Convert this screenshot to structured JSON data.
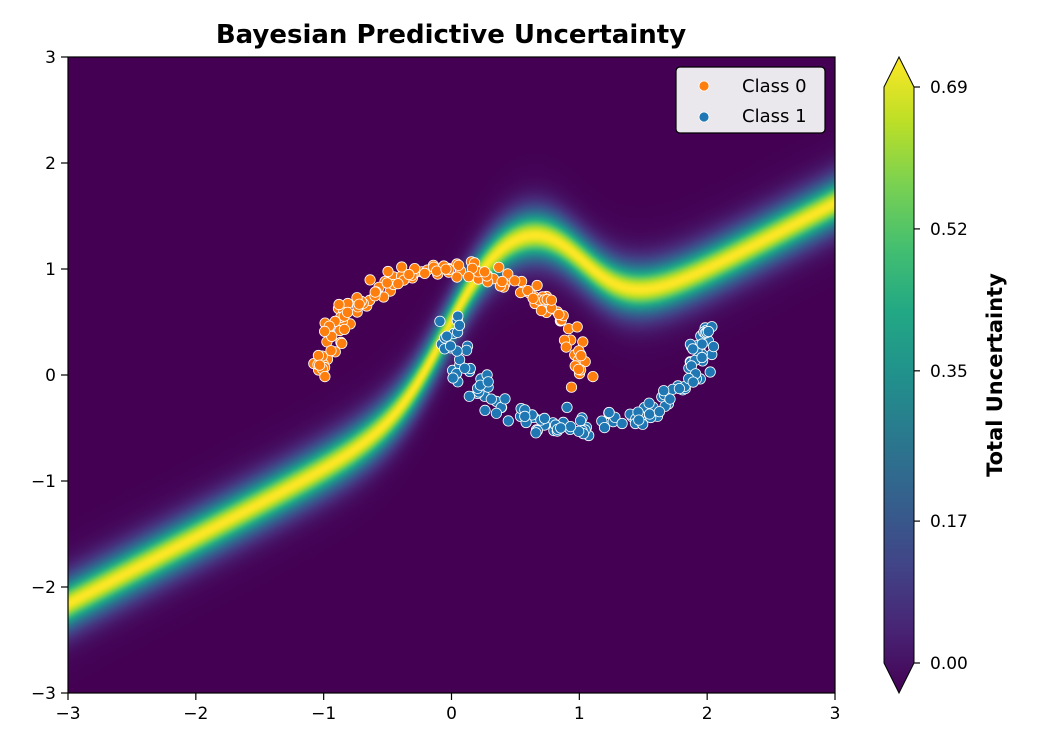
{
  "chart_data": {
    "type": "scatter",
    "subtype": "filled-contour-with-scatter-overlay",
    "title": "Bayesian Predictive Uncertainty",
    "xlabel": "",
    "ylabel": "",
    "xlim": [
      -3,
      3
    ],
    "ylim": [
      -3,
      3
    ],
    "x_ticks": [
      -3,
      -2,
      -1,
      0,
      1,
      2,
      3
    ],
    "y_ticks": [
      -3,
      -2,
      -1,
      0,
      1,
      2,
      3
    ],
    "x_tick_labels": [
      "−3",
      "−2",
      "−1",
      "0",
      "1",
      "2",
      "3"
    ],
    "y_tick_labels": [
      "−3",
      "−2",
      "−1",
      "0",
      "1",
      "2",
      "3"
    ],
    "grid": false,
    "legend": {
      "position": "top-right",
      "entries": [
        "Class 0",
        "Class 1"
      ]
    },
    "series": [
      {
        "name": "Class 0",
        "color": "#ff7f0e",
        "shape": "two-moons upper arc",
        "center": [
          0,
          0
        ],
        "radius": 1,
        "angle_range_deg": [
          0,
          180
        ],
        "approx_points": 150
      },
      {
        "name": "Class 1",
        "color": "#1f77b4",
        "shape": "two-moons lower arc",
        "center": [
          1,
          0.5
        ],
        "radius": 1,
        "angle_range_deg": [
          180,
          360
        ],
        "approx_points": 150
      }
    ],
    "surface": {
      "quantity": "Total Uncertainty",
      "colormap": "viridis",
      "min": 0.0,
      "max": 0.69,
      "description": "High-uncertainty band follows the decision boundary between the moons and extends diagonally toward the lower-left and upper-right corners"
    },
    "colorbar": {
      "label": "Total Uncertainty",
      "ticks": [
        0.0,
        0.17,
        0.35,
        0.52,
        0.69
      ],
      "tick_labels": [
        "0.00",
        "0.17",
        "0.35",
        "0.52",
        "0.69"
      ],
      "extend": "both"
    }
  }
}
